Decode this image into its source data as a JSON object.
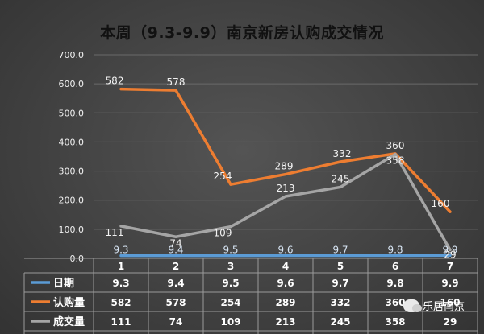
{
  "chart_data": {
    "type": "line",
    "title": "本周（9.3-9.9）南京新房认购成交情况",
    "categories": [
      "1",
      "2",
      "3",
      "4",
      "5",
      "6",
      "7"
    ],
    "y_ticks": [
      "0.0",
      "100.0",
      "200.0",
      "300.0",
      "400.0",
      "500.0",
      "600.0",
      "700.0"
    ],
    "ylim": [
      0,
      700
    ],
    "grid": true,
    "series": [
      {
        "name": "日期",
        "color": "#5b9bd5",
        "values": [
          9.3,
          9.4,
          9.5,
          9.6,
          9.7,
          9.8,
          9.9
        ],
        "labels": [
          "9.3",
          "9.4",
          "9.5",
          "9.6",
          "9.7",
          "9.8",
          "9.9"
        ]
      },
      {
        "name": "认购量",
        "color": "#ed7d31",
        "values": [
          582,
          578,
          254,
          289,
          332,
          360,
          160
        ],
        "labels": [
          "582",
          "578",
          "254",
          "289",
          "332",
          "360",
          "160"
        ]
      },
      {
        "name": "成交量",
        "color": "#a5a5a5",
        "values": [
          111,
          74,
          109,
          213,
          245,
          358,
          29
        ],
        "labels": [
          "111",
          "74",
          "109",
          "213",
          "245",
          "358",
          "29"
        ]
      }
    ],
    "data_table": true
  },
  "watermark": {
    "text": "乐居南京",
    "icon": "wechat-icon"
  }
}
